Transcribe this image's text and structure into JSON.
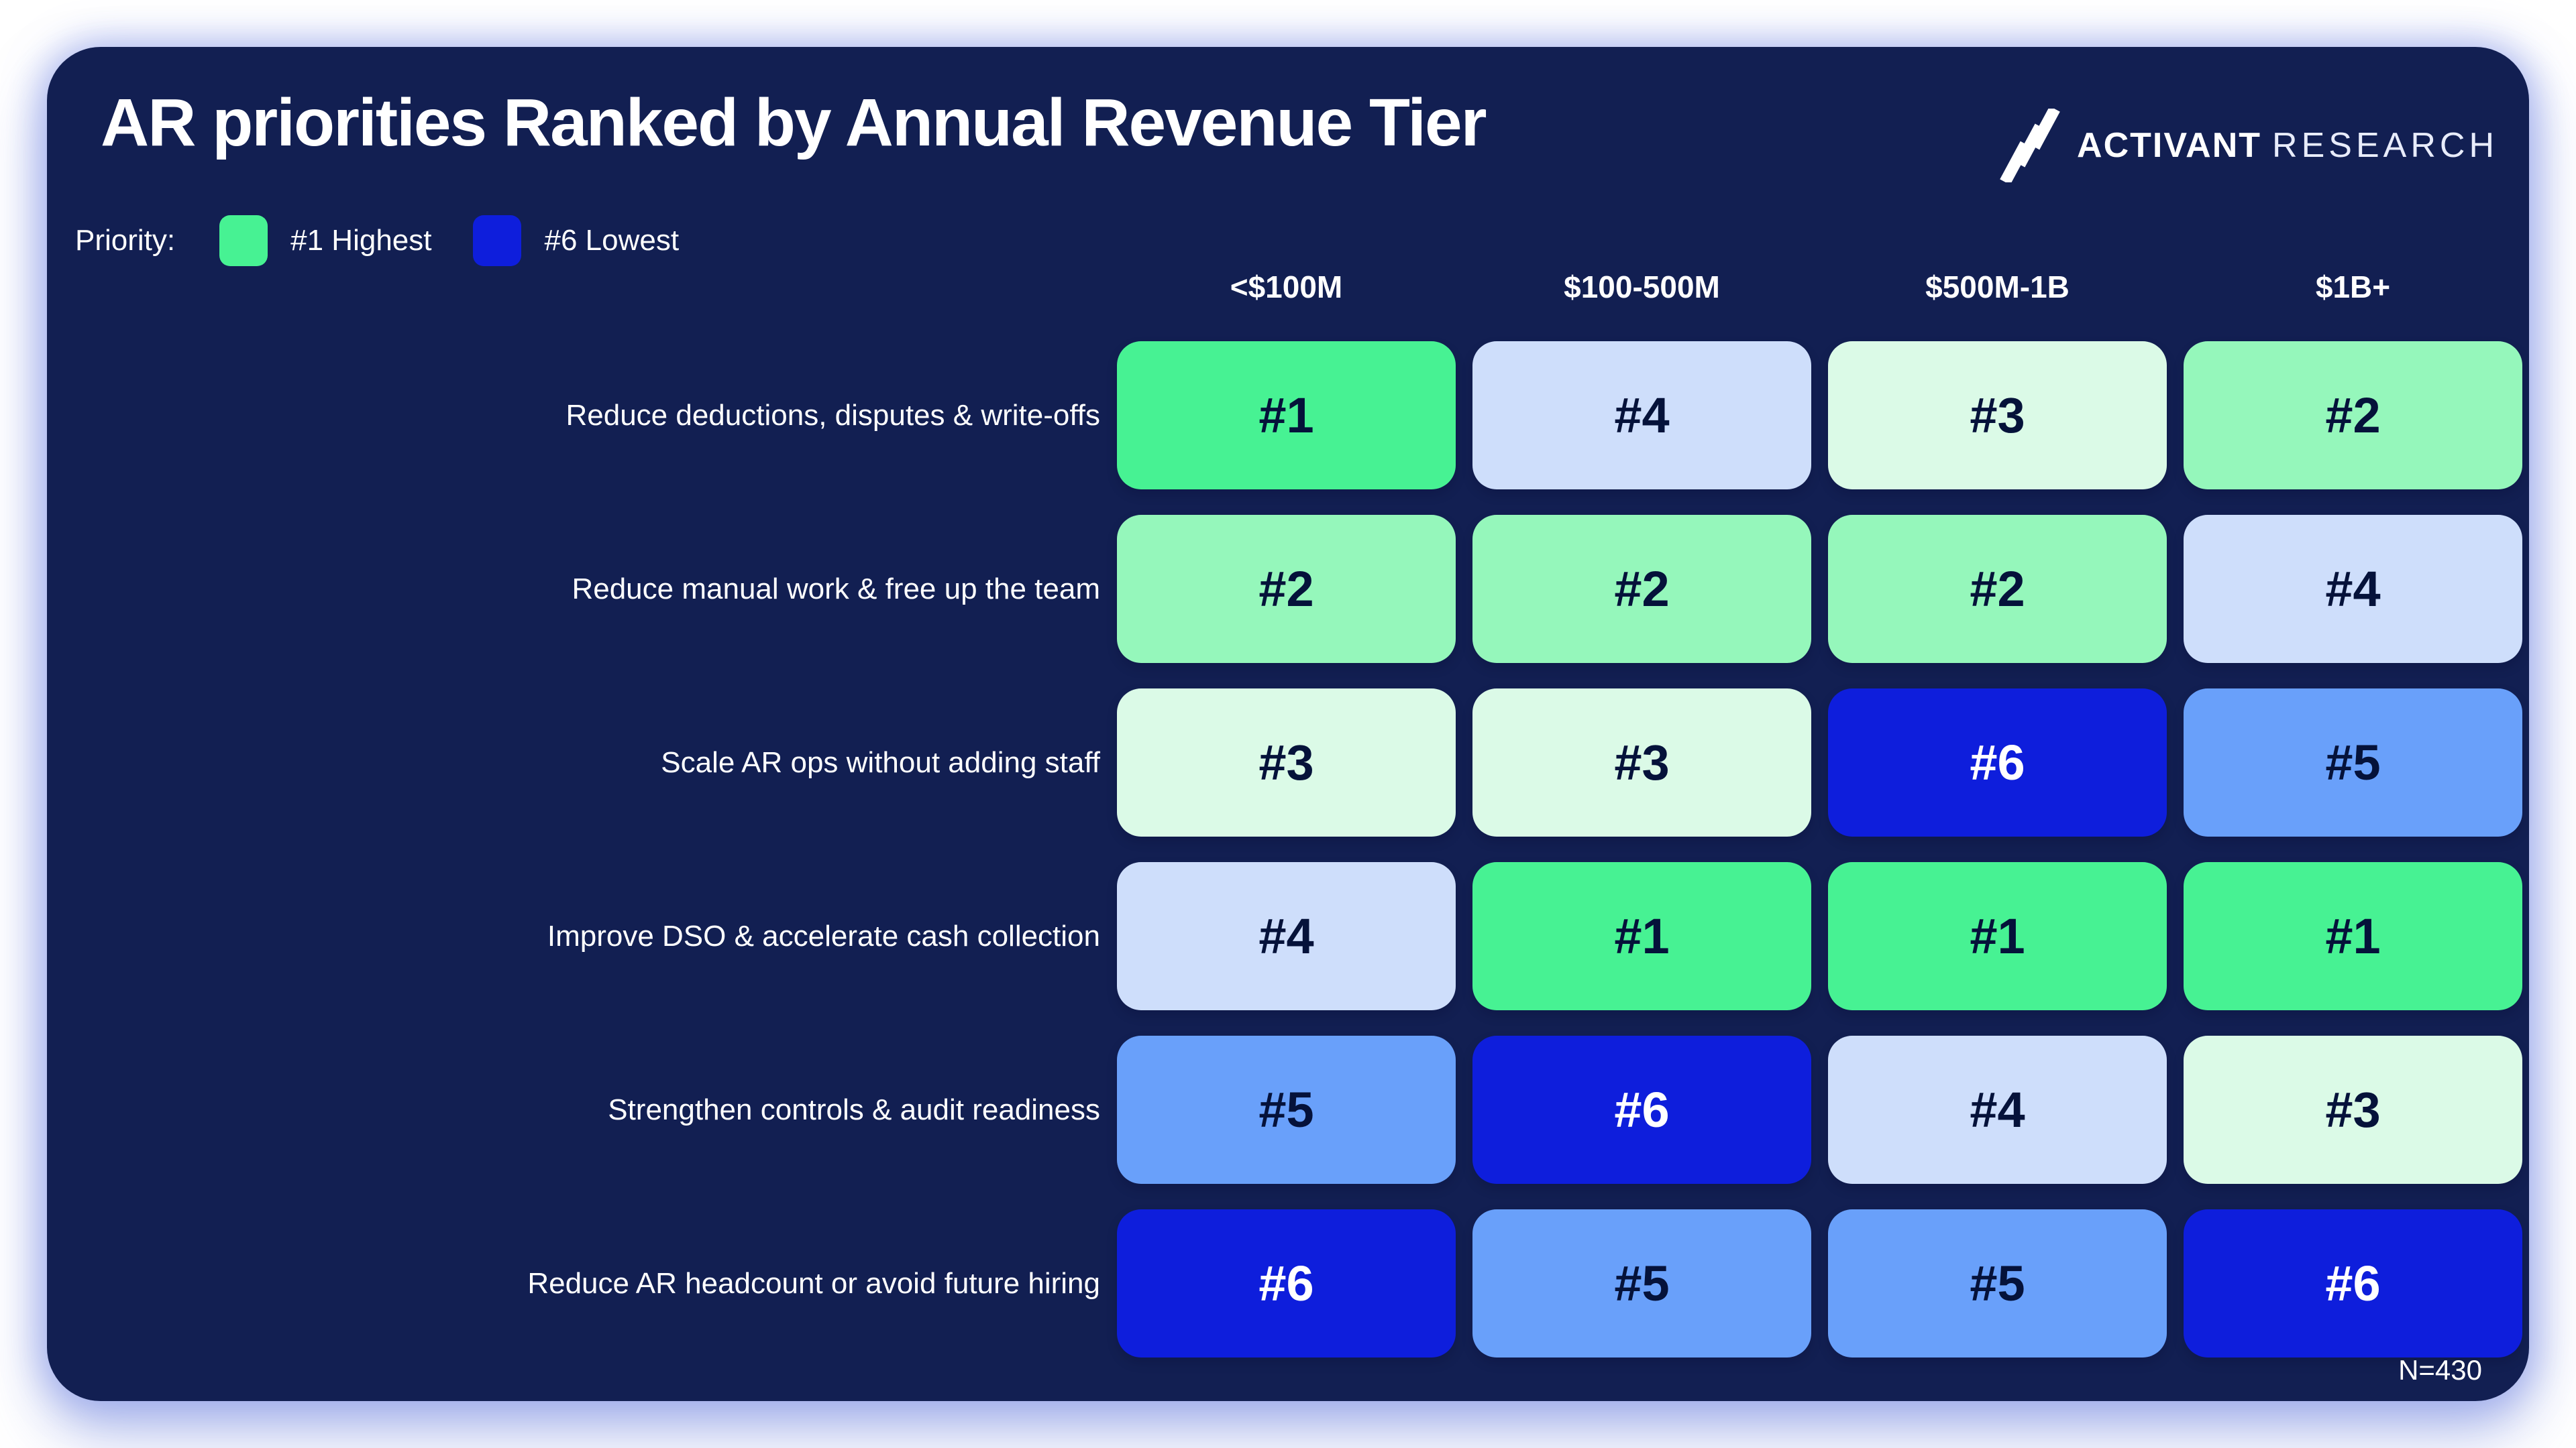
{
  "title": "AR priorities Ranked by Annual Revenue Tier",
  "logo": {
    "icon": "activant-triple-slash-icon",
    "name": "ACTIVANT",
    "suffix": "RESEARCH"
  },
  "legend": {
    "label": "Priority:",
    "items": [
      {
        "label": "#1 Highest",
        "swatch_color": "#47f293"
      },
      {
        "label": "#6 Lowest",
        "swatch_color": "#0e1edc"
      }
    ]
  },
  "footnote": "N=430",
  "colors": {
    "page_background": "#ffffff",
    "panel_background": "#121f52",
    "panel_glow": "#94a3eb",
    "cell_text_dark": "#05123a",
    "cell_text_light": "#ffffff"
  },
  "chart_data": {
    "type": "heatmap",
    "title": "AR priorities Ranked by Annual Revenue Tier",
    "columns": [
      "<$100M",
      "$100-500M",
      "$500M-1B",
      "$1B+"
    ],
    "rows": [
      "Reduce deductions, disputes & write-offs",
      "Reduce manual work & free up the team",
      "Scale AR ops without adding staff",
      "Improve DSO & accelerate cash collection",
      "Strengthen controls & audit readiness",
      "Reduce AR headcount or avoid future hiring"
    ],
    "values": [
      [
        1,
        4,
        3,
        2
      ],
      [
        2,
        2,
        2,
        4
      ],
      [
        3,
        3,
        6,
        5
      ],
      [
        4,
        1,
        1,
        1
      ],
      [
        5,
        6,
        4,
        3
      ],
      [
        6,
        5,
        5,
        6
      ]
    ],
    "cell_prefix": "#",
    "rank_colors": {
      "1": "#47f293",
      "2": "#95f7bb",
      "3": "#dbfae7",
      "4": "#cedefb",
      "5": "#69a0fa",
      "6": "#0e1edc"
    },
    "white_text_ranks": [
      6
    ],
    "legend_position": "top-left",
    "sample_size": "N=430"
  }
}
